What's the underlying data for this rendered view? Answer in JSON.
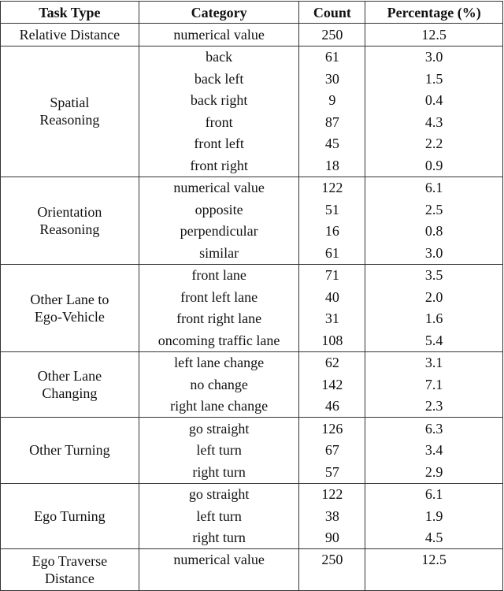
{
  "table": {
    "headers": [
      "Task Type",
      "Category",
      "Count",
      "Percentage (%)"
    ],
    "groups": [
      {
        "task": [
          "Relative Distance"
        ],
        "rows": [
          [
            "numerical value",
            250,
            "12.5"
          ]
        ]
      },
      {
        "task": [
          "Spatial",
          "Reasoning"
        ],
        "rows": [
          [
            "back",
            61,
            "3.0"
          ],
          [
            "back left",
            30,
            "1.5"
          ],
          [
            "back right",
            9,
            "0.4"
          ],
          [
            "front",
            87,
            "4.3"
          ],
          [
            "front left",
            45,
            "2.2"
          ],
          [
            "front right",
            18,
            "0.9"
          ]
        ]
      },
      {
        "task": [
          "Orientation",
          "Reasoning"
        ],
        "rows": [
          [
            "numerical value",
            122,
            "6.1"
          ],
          [
            "opposite",
            51,
            "2.5"
          ],
          [
            "perpendicular",
            16,
            "0.8"
          ],
          [
            "similar",
            61,
            "3.0"
          ]
        ]
      },
      {
        "task": [
          "Other Lane to",
          "Ego-Vehicle"
        ],
        "rows": [
          [
            "front lane",
            71,
            "3.5"
          ],
          [
            "front left lane",
            40,
            "2.0"
          ],
          [
            "front right lane",
            31,
            "1.6"
          ],
          [
            "oncoming traffic lane",
            108,
            "5.4"
          ]
        ]
      },
      {
        "task": [
          "Other Lane",
          "Changing"
        ],
        "rows": [
          [
            "left lane change",
            62,
            "3.1"
          ],
          [
            "no change",
            142,
            "7.1"
          ],
          [
            "right lane change",
            46,
            "2.3"
          ]
        ]
      },
      {
        "task": [
          "Other Turning"
        ],
        "rows": [
          [
            "go straight",
            126,
            "6.3"
          ],
          [
            "left turn",
            67,
            "3.4"
          ],
          [
            "right turn",
            57,
            "2.9"
          ]
        ]
      },
      {
        "task": [
          "Ego Turning"
        ],
        "rows": [
          [
            "go straight",
            122,
            "6.1"
          ],
          [
            "left turn",
            38,
            "1.9"
          ],
          [
            "right turn",
            90,
            "4.5"
          ]
        ]
      },
      {
        "task": [
          "Ego Traverse",
          "Distance"
        ],
        "rows": [
          [
            "numerical value",
            250,
            "12.5"
          ]
        ]
      }
    ]
  }
}
